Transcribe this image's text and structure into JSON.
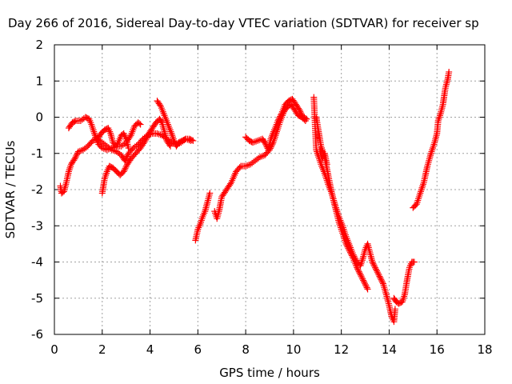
{
  "chart_data": {
    "type": "scatter",
    "title": "Day 266 of 2016, Sidereal Day-to-day VTEC variation (SDTVAR) for receiver sp",
    "xlabel": "GPS time / hours",
    "ylabel": "SDTVAR / TECUs",
    "xlim": [
      0,
      18
    ],
    "ylim": [
      -6,
      2
    ],
    "xticks": [
      "0",
      "2",
      "4",
      "6",
      "8",
      "10",
      "12",
      "14",
      "16",
      "18"
    ],
    "yticks": [
      "2",
      "1",
      "0",
      "-1",
      "-2",
      "-3",
      "-4",
      "-5",
      "-6"
    ],
    "grid": true,
    "legend": "none",
    "marker": "plus",
    "color": "#ff0000",
    "series": [
      {
        "points": [
          [
            0.25,
            -1.9
          ],
          [
            0.3,
            -2.1
          ],
          [
            0.4,
            -2.05
          ],
          [
            0.5,
            -1.8
          ],
          [
            0.6,
            -1.5
          ],
          [
            0.7,
            -1.3
          ],
          [
            0.85,
            -1.15
          ],
          [
            1.0,
            -0.95
          ],
          [
            1.2,
            -0.9
          ],
          [
            1.4,
            -0.8
          ],
          [
            1.6,
            -0.65
          ],
          [
            1.8,
            -0.6
          ],
          [
            2.0,
            -0.7
          ],
          [
            2.2,
            -0.8
          ],
          [
            2.4,
            -0.9
          ],
          [
            2.6,
            -0.95
          ],
          [
            2.8,
            -1.05
          ],
          [
            2.95,
            -1.2
          ],
          [
            3.1,
            -1.0
          ],
          [
            3.3,
            -0.85
          ],
          [
            3.5,
            -0.75
          ],
          [
            3.7,
            -0.6
          ],
          [
            3.9,
            -0.5
          ],
          [
            4.1,
            -0.45
          ],
          [
            4.3,
            -0.45
          ],
          [
            4.5,
            -0.5
          ],
          [
            4.7,
            -0.6
          ],
          [
            4.9,
            -0.7
          ],
          [
            5.1,
            -0.75
          ],
          [
            5.3,
            -0.7
          ],
          [
            5.5,
            -0.6
          ],
          [
            5.7,
            -0.65
          ]
        ]
      },
      {
        "points": [
          [
            0.6,
            -0.3
          ],
          [
            0.75,
            -0.15
          ],
          [
            0.9,
            -0.1
          ],
          [
            1.1,
            -0.1
          ],
          [
            1.3,
            0.0
          ],
          [
            1.45,
            -0.05
          ],
          [
            1.55,
            -0.2
          ],
          [
            1.7,
            -0.5
          ],
          [
            1.85,
            -0.75
          ],
          [
            2.0,
            -0.85
          ],
          [
            2.2,
            -0.9
          ],
          [
            2.4,
            -0.85
          ],
          [
            2.6,
            -0.8
          ],
          [
            2.8,
            -0.8
          ],
          [
            3.0,
            -0.7
          ],
          [
            3.2,
            -0.5
          ],
          [
            3.35,
            -0.25
          ],
          [
            3.5,
            -0.15
          ],
          [
            3.6,
            -0.2
          ]
        ]
      },
      {
        "points": [
          [
            2.0,
            -2.1
          ],
          [
            2.05,
            -1.9
          ],
          [
            2.1,
            -1.7
          ],
          [
            2.2,
            -1.5
          ],
          [
            2.3,
            -1.35
          ],
          [
            2.45,
            -1.4
          ],
          [
            2.6,
            -1.5
          ],
          [
            2.75,
            -1.6
          ],
          [
            2.9,
            -1.5
          ],
          [
            3.05,
            -1.3
          ],
          [
            3.2,
            -1.15
          ],
          [
            3.4,
            -1.0
          ],
          [
            3.6,
            -0.85
          ],
          [
            3.8,
            -0.65
          ],
          [
            3.95,
            -0.45
          ],
          [
            4.1,
            -0.3
          ],
          [
            4.25,
            -0.15
          ],
          [
            4.4,
            -0.05
          ],
          [
            4.5,
            -0.15
          ],
          [
            4.6,
            -0.4
          ],
          [
            4.7,
            -0.65
          ],
          [
            4.85,
            -0.8
          ]
        ]
      },
      {
        "points": [
          [
            1.8,
            -0.6
          ],
          [
            1.95,
            -0.45
          ],
          [
            2.1,
            -0.35
          ],
          [
            2.25,
            -0.3
          ],
          [
            2.35,
            -0.45
          ],
          [
            2.45,
            -0.7
          ],
          [
            2.6,
            -0.8
          ],
          [
            2.7,
            -0.65
          ],
          [
            2.8,
            -0.5
          ],
          [
            2.9,
            -0.45
          ],
          [
            3.0,
            -0.6
          ],
          [
            3.1,
            -0.85
          ]
        ]
      },
      {
        "points": [
          [
            4.3,
            0.45
          ],
          [
            4.45,
            0.3
          ],
          [
            4.6,
            0.05
          ],
          [
            4.75,
            -0.2
          ],
          [
            4.9,
            -0.45
          ],
          [
            5.0,
            -0.65
          ],
          [
            5.1,
            -0.8
          ],
          [
            5.2,
            -0.7
          ],
          [
            5.35,
            -0.65
          ],
          [
            5.5,
            -0.6
          ],
          [
            5.65,
            -0.6
          ],
          [
            5.8,
            -0.65
          ]
        ]
      },
      {
        "points": [
          [
            5.9,
            -3.4
          ],
          [
            6.0,
            -3.1
          ],
          [
            6.1,
            -2.95
          ],
          [
            6.2,
            -2.75
          ],
          [
            6.3,
            -2.6
          ],
          [
            6.4,
            -2.35
          ],
          [
            6.5,
            -2.1
          ]
        ]
      },
      {
        "points": [
          [
            6.7,
            -2.6
          ],
          [
            6.8,
            -2.8
          ],
          [
            6.9,
            -2.55
          ],
          [
            7.0,
            -2.2
          ],
          [
            7.2,
            -2.0
          ],
          [
            7.4,
            -1.8
          ],
          [
            7.6,
            -1.5
          ],
          [
            7.8,
            -1.35
          ],
          [
            8.0,
            -1.35
          ],
          [
            8.2,
            -1.3
          ],
          [
            8.4,
            -1.2
          ],
          [
            8.6,
            -1.1
          ],
          [
            8.8,
            -1.05
          ],
          [
            9.0,
            -0.9
          ],
          [
            9.15,
            -0.7
          ],
          [
            9.3,
            -0.4
          ],
          [
            9.45,
            -0.1
          ],
          [
            9.6,
            0.15
          ],
          [
            9.75,
            0.3
          ],
          [
            9.9,
            0.35
          ],
          [
            10.05,
            0.2
          ],
          [
            10.2,
            0.05
          ],
          [
            10.35,
            0.0
          ],
          [
            10.5,
            -0.1
          ]
        ]
      },
      {
        "points": [
          [
            8.0,
            -0.55
          ],
          [
            8.15,
            -0.65
          ],
          [
            8.3,
            -0.7
          ],
          [
            8.5,
            -0.65
          ],
          [
            8.7,
            -0.6
          ],
          [
            8.8,
            -0.7
          ],
          [
            8.95,
            -0.9
          ],
          [
            9.05,
            -0.6
          ],
          [
            9.2,
            -0.35
          ],
          [
            9.35,
            -0.1
          ],
          [
            9.5,
            0.1
          ],
          [
            9.65,
            0.35
          ],
          [
            9.8,
            0.45
          ],
          [
            9.95,
            0.5
          ],
          [
            10.1,
            0.35
          ],
          [
            10.25,
            0.2
          ],
          [
            10.4,
            0.0
          ],
          [
            10.55,
            -0.05
          ]
        ]
      },
      {
        "points": [
          [
            10.85,
            0.55
          ],
          [
            10.9,
            -0.2
          ],
          [
            10.95,
            -0.9
          ],
          [
            11.05,
            -1.1
          ],
          [
            11.15,
            -1.3
          ],
          [
            11.3,
            -1.55
          ],
          [
            11.45,
            -1.85
          ],
          [
            11.6,
            -2.1
          ],
          [
            11.75,
            -2.45
          ],
          [
            11.9,
            -2.75
          ],
          [
            12.05,
            -3.0
          ],
          [
            12.2,
            -3.3
          ],
          [
            12.35,
            -3.55
          ],
          [
            12.5,
            -3.8
          ],
          [
            12.65,
            -4.0
          ],
          [
            12.8,
            -4.1
          ],
          [
            12.9,
            -3.9
          ],
          [
            13.0,
            -3.65
          ],
          [
            13.1,
            -3.5
          ],
          [
            13.2,
            -3.75
          ],
          [
            13.3,
            -4.0
          ]
        ]
      },
      {
        "points": [
          [
            10.95,
            0.0
          ],
          [
            11.05,
            -0.4
          ],
          [
            11.15,
            -0.8
          ],
          [
            11.3,
            -1.1
          ],
          [
            11.45,
            -1.6
          ],
          [
            11.6,
            -2.1
          ],
          [
            11.75,
            -2.5
          ],
          [
            11.9,
            -2.9
          ],
          [
            12.05,
            -3.2
          ],
          [
            12.2,
            -3.5
          ],
          [
            12.35,
            -3.7
          ],
          [
            12.5,
            -3.9
          ],
          [
            12.65,
            -4.15
          ],
          [
            12.8,
            -4.35
          ],
          [
            12.95,
            -4.55
          ],
          [
            13.1,
            -4.75
          ]
        ]
      },
      {
        "points": [
          [
            11.1,
            -0.9
          ],
          [
            11.2,
            -1.15
          ],
          [
            11.3,
            -1.0
          ],
          [
            11.4,
            -1.3
          ]
        ]
      },
      {
        "points": [
          [
            13.3,
            -4.0
          ],
          [
            13.45,
            -4.2
          ],
          [
            13.6,
            -4.4
          ],
          [
            13.75,
            -4.6
          ],
          [
            13.9,
            -4.95
          ],
          [
            14.0,
            -5.2
          ],
          [
            14.1,
            -5.5
          ],
          [
            14.2,
            -5.65
          ],
          [
            14.25,
            -5.3
          ]
        ]
      },
      {
        "points": [
          [
            14.2,
            -5.0
          ],
          [
            14.3,
            -5.1
          ],
          [
            14.4,
            -5.15
          ],
          [
            14.55,
            -5.1
          ],
          [
            14.65,
            -4.9
          ],
          [
            14.75,
            -4.5
          ],
          [
            14.85,
            -4.15
          ],
          [
            14.95,
            -4.0
          ],
          [
            15.05,
            -4.0
          ]
        ]
      },
      {
        "points": [
          [
            15.0,
            -2.5
          ],
          [
            15.15,
            -2.4
          ],
          [
            15.3,
            -2.1
          ],
          [
            15.45,
            -1.8
          ],
          [
            15.6,
            -1.35
          ],
          [
            15.75,
            -1.0
          ],
          [
            15.9,
            -0.7
          ],
          [
            16.0,
            -0.45
          ],
          [
            16.05,
            -0.1
          ],
          [
            16.15,
            0.1
          ],
          [
            16.25,
            0.35
          ],
          [
            16.35,
            0.8
          ],
          [
            16.45,
            1.05
          ],
          [
            16.5,
            1.25
          ]
        ]
      }
    ]
  }
}
